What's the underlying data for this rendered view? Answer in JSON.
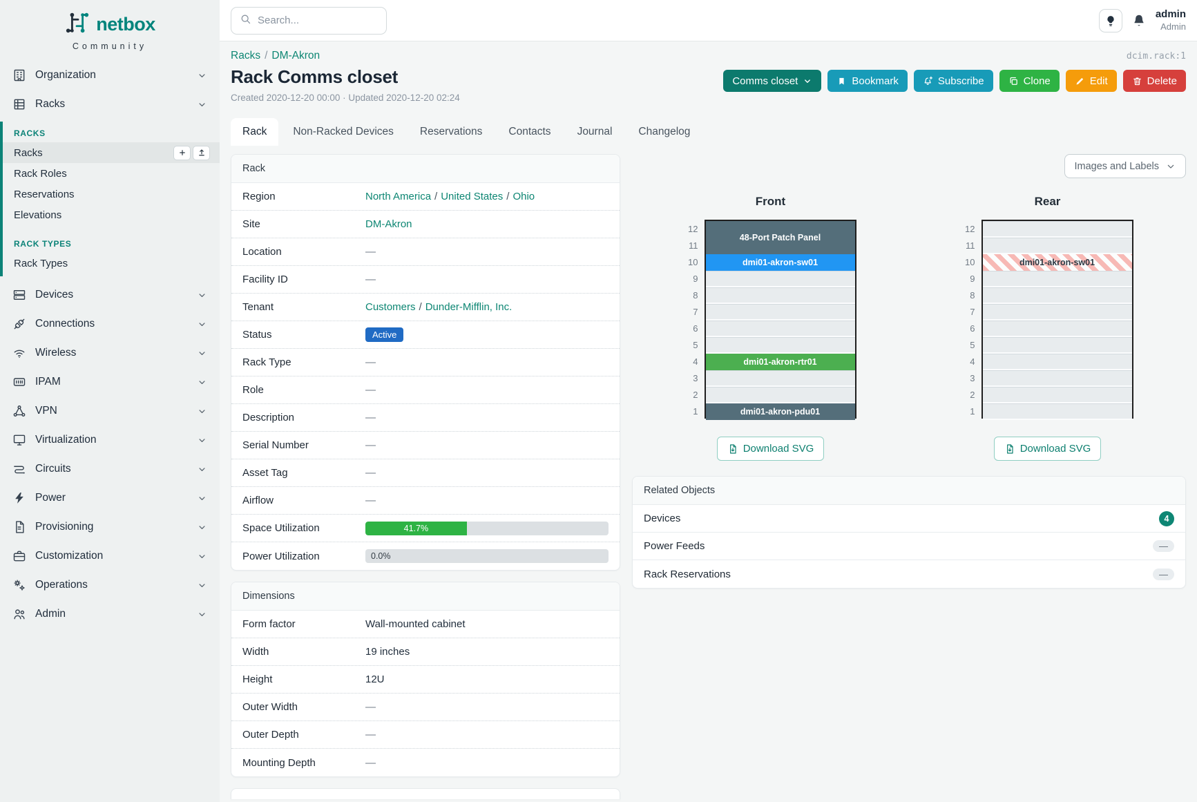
{
  "brand": {
    "name": "netbox",
    "tagline": "Community"
  },
  "header": {
    "search_placeholder": "Search...",
    "user": {
      "name": "admin",
      "role": "Admin"
    },
    "object_ref": "dcim.rack:1"
  },
  "sidebar": {
    "top_items": [
      {
        "icon": "building-icon",
        "label": "Organization"
      },
      {
        "icon": "rack-icon",
        "label": "Racks"
      }
    ],
    "racks_submenu": {
      "groups": [
        {
          "title": "RACKS",
          "items": [
            {
              "label": "Racks",
              "active": true
            },
            {
              "label": "Rack Roles"
            },
            {
              "label": "Reservations"
            },
            {
              "label": "Elevations"
            }
          ]
        },
        {
          "title": "RACK TYPES",
          "items": [
            {
              "label": "Rack Types"
            }
          ]
        }
      ]
    },
    "items": [
      {
        "icon": "devices-icon",
        "label": "Devices"
      },
      {
        "icon": "connections-icon",
        "label": "Connections"
      },
      {
        "icon": "wireless-icon",
        "label": "Wireless"
      },
      {
        "icon": "ipam-icon",
        "label": "IPAM"
      },
      {
        "icon": "vpn-icon",
        "label": "VPN"
      },
      {
        "icon": "virtualization-icon",
        "label": "Virtualization"
      },
      {
        "icon": "circuits-icon",
        "label": "Circuits"
      },
      {
        "icon": "power-icon",
        "label": "Power"
      },
      {
        "icon": "provisioning-icon",
        "label": "Provisioning"
      },
      {
        "icon": "customization-icon",
        "label": "Customization"
      },
      {
        "icon": "operations-icon",
        "label": "Operations"
      },
      {
        "icon": "admin-icon",
        "label": "Admin"
      }
    ]
  },
  "breadcrumb": {
    "items": [
      "Racks",
      "DM-Akron"
    ],
    "separator": "/"
  },
  "page": {
    "title": "Rack Comms closet",
    "meta": "Created 2020-12-20 00:00 · Updated 2020-12-20 02:24"
  },
  "actions": [
    {
      "name": "comms-closet",
      "label": "Comms closet",
      "color": "#0c7a6d",
      "icon": "chevron-after"
    },
    {
      "name": "bookmark",
      "label": "Bookmark",
      "color": "#189bb8",
      "icon": "bookmark-icon"
    },
    {
      "name": "subscribe",
      "label": "Subscribe",
      "color": "#189bb8",
      "icon": "bell-plus-icon"
    },
    {
      "name": "clone",
      "label": "Clone",
      "color": "#2eb344",
      "icon": "copy-icon"
    },
    {
      "name": "edit",
      "label": "Edit",
      "color": "#f59c0b",
      "icon": "pencil-icon"
    },
    {
      "name": "delete",
      "label": "Delete",
      "color": "#d6403c",
      "icon": "trash-icon"
    }
  ],
  "tabs": [
    {
      "label": "Rack",
      "active": true
    },
    {
      "label": "Non-Racked Devices"
    },
    {
      "label": "Reservations"
    },
    {
      "label": "Contacts"
    },
    {
      "label": "Journal"
    },
    {
      "label": "Changelog"
    }
  ],
  "rack_panel": {
    "title": "Rack",
    "rows": [
      {
        "label": "Region",
        "type": "links",
        "links": [
          "North America",
          "United States",
          "Ohio"
        ]
      },
      {
        "label": "Site",
        "type": "links",
        "links": [
          "DM-Akron"
        ]
      },
      {
        "label": "Location",
        "type": "empty",
        "value": "—"
      },
      {
        "label": "Facility ID",
        "type": "empty",
        "value": "—"
      },
      {
        "label": "Tenant",
        "type": "links",
        "links": [
          "Customers",
          "Dunder-Mifflin, Inc."
        ]
      },
      {
        "label": "Status",
        "type": "badge",
        "value": "Active",
        "color": "#206bc4"
      },
      {
        "label": "Rack Type",
        "type": "empty",
        "value": "—"
      },
      {
        "label": "Role",
        "type": "empty",
        "value": "—"
      },
      {
        "label": "Description",
        "type": "empty",
        "value": "—"
      },
      {
        "label": "Serial Number",
        "type": "empty",
        "value": "—"
      },
      {
        "label": "Asset Tag",
        "type": "empty",
        "value": "—"
      },
      {
        "label": "Airflow",
        "type": "empty",
        "value": "—"
      },
      {
        "label": "Space Utilization",
        "type": "progress",
        "value": "41.7%",
        "percent": 41.7,
        "color": "#2eb344"
      },
      {
        "label": "Power Utilization",
        "type": "progress",
        "value": "0.0%",
        "percent": 0,
        "color": "#2eb344"
      }
    ]
  },
  "dimensions_panel": {
    "title": "Dimensions",
    "rows": [
      {
        "label": "Form factor",
        "type": "text",
        "value": "Wall-mounted cabinet"
      },
      {
        "label": "Width",
        "type": "text",
        "value": "19 inches"
      },
      {
        "label": "Height",
        "type": "text",
        "value": "12U"
      },
      {
        "label": "Outer Width",
        "type": "empty",
        "value": "—"
      },
      {
        "label": "Outer Depth",
        "type": "empty",
        "value": "—"
      },
      {
        "label": "Mounting Depth",
        "type": "empty",
        "value": "—"
      }
    ]
  },
  "elevation": {
    "view_selector": "Images and Labels",
    "download_label": "Download SVG",
    "units": 12,
    "views": [
      {
        "title": "Front",
        "devices": [
          {
            "top_u": 12,
            "size": 2,
            "label": "48-Port Patch Panel",
            "color": "#546e7a"
          },
          {
            "top_u": 10,
            "size": 1,
            "label": "dmi01-akron-sw01",
            "color": "#2196f3"
          },
          {
            "top_u": 4,
            "size": 1,
            "label": "dmi01-akron-rtr01",
            "color": "#4caf50"
          },
          {
            "top_u": 1,
            "size": 1,
            "label": "dmi01-akron-pdu01",
            "color": "#546e7a"
          }
        ]
      },
      {
        "title": "Rear",
        "devices": [
          {
            "top_u": 10,
            "size": 1,
            "label": "dmi01-akron-sw01",
            "striped": true
          }
        ]
      }
    ]
  },
  "related_panel": {
    "title": "Related Objects",
    "rows": [
      {
        "label": "Devices",
        "count": "4"
      },
      {
        "label": "Power Feeds",
        "count": "—"
      },
      {
        "label": "Rack Reservations",
        "count": "—"
      }
    ]
  }
}
